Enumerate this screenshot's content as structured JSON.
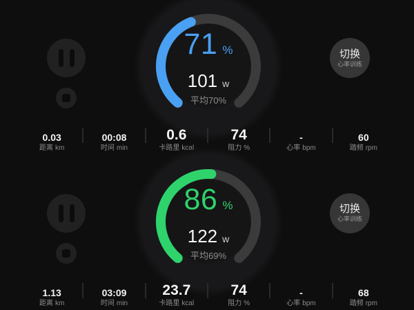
{
  "colors": {
    "background": "#0e0e0e",
    "gauge_track": "#3b3b3b",
    "accent_blue": "#4AA0F2",
    "accent_green": "#2FD36C"
  },
  "panels": [
    {
      "gauge": {
        "percent": 71,
        "percent_unit": "%",
        "power": "101",
        "power_unit": "w",
        "average": "平均70%",
        "color": "#4AA0F2"
      },
      "switch": {
        "label": "切换",
        "sublabel": "心率训练"
      },
      "stats": [
        {
          "value": "0.03",
          "label": "距离",
          "unit": "km",
          "emphasis": false
        },
        {
          "value": "00:08",
          "label": "时间",
          "unit": "min",
          "emphasis": false
        },
        {
          "value": "0.6",
          "label": "卡路里",
          "unit": "kcal",
          "emphasis": true
        },
        {
          "value": "74",
          "label": "阻力",
          "unit": "%",
          "emphasis": true
        },
        {
          "value": "-",
          "label": "心率",
          "unit": "bpm",
          "emphasis": false
        },
        {
          "value": "60",
          "label": "踏频",
          "unit": "rpm",
          "emphasis": false
        }
      ]
    },
    {
      "gauge": {
        "percent": 86,
        "percent_unit": "%",
        "power": "122",
        "power_unit": "w",
        "average": "平均69%",
        "color": "#2FD36C"
      },
      "switch": {
        "label": "切换",
        "sublabel": "心率训练"
      },
      "stats": [
        {
          "value": "1.13",
          "label": "距离",
          "unit": "km",
          "emphasis": false
        },
        {
          "value": "03:09",
          "label": "时间",
          "unit": "min",
          "emphasis": false
        },
        {
          "value": "23.7",
          "label": "卡路里",
          "unit": "kcal",
          "emphasis": true
        },
        {
          "value": "74",
          "label": "阻力",
          "unit": "%",
          "emphasis": true
        },
        {
          "value": "-",
          "label": "心率",
          "unit": "bpm",
          "emphasis": false
        },
        {
          "value": "68",
          "label": "踏频",
          "unit": "rpm",
          "emphasis": false
        }
      ]
    }
  ]
}
